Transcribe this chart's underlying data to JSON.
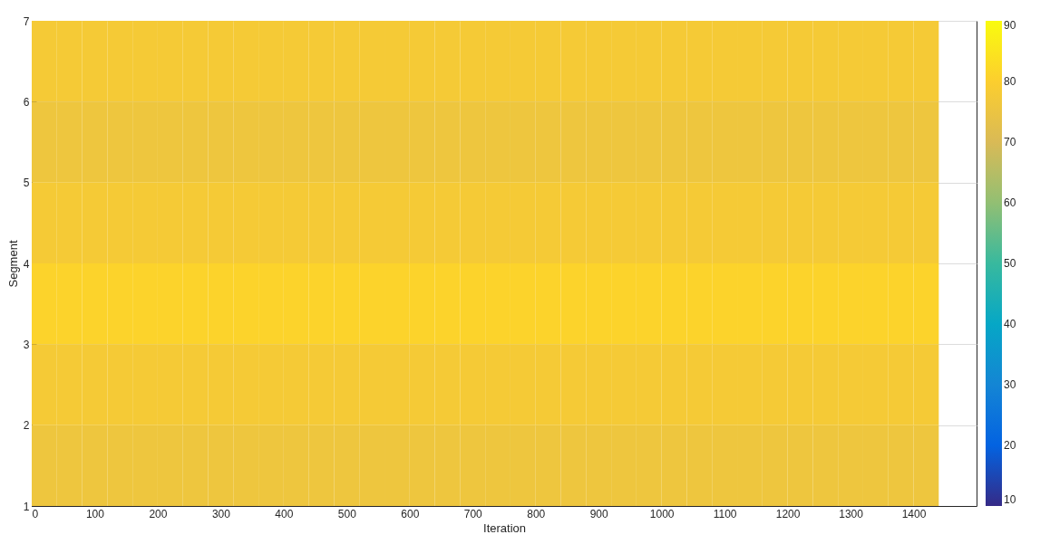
{
  "chart_data": {
    "type": "heatmap",
    "xlabel": "Iteration",
    "ylabel": "Segment",
    "x": [
      20,
      60,
      100,
      140,
      180,
      220,
      260,
      300,
      340,
      380,
      420,
      460,
      500,
      540,
      580,
      620,
      660,
      700,
      740,
      780,
      820,
      860,
      900,
      940,
      980,
      1020,
      1060,
      1100,
      1140,
      1180,
      1220,
      1260,
      1300,
      1340,
      1380,
      1420
    ],
    "cells": [
      [
        78,
        78,
        78,
        78,
        78,
        78,
        78,
        78,
        78,
        78,
        78,
        78,
        78,
        78,
        78,
        78,
        78,
        78,
        78,
        78,
        78,
        78,
        78,
        78,
        78,
        78,
        78,
        78,
        78,
        78,
        78,
        78,
        78,
        78,
        78,
        78
      ],
      [
        76,
        76,
        76,
        76,
        76,
        76,
        76,
        76,
        76,
        76,
        76,
        76,
        76,
        76,
        76,
        76,
        76,
        76,
        76,
        76,
        76,
        76,
        76,
        76,
        76,
        76,
        76,
        76,
        76,
        76,
        76,
        76,
        76,
        76,
        76,
        76
      ],
      [
        78,
        78,
        78,
        78,
        78,
        78,
        78,
        78,
        78,
        78,
        78,
        78,
        78,
        78,
        78,
        78,
        78,
        78,
        78,
        78,
        78,
        78,
        78,
        78,
        78,
        78,
        78,
        78,
        78,
        78,
        78,
        78,
        78,
        78,
        78,
        78
      ],
      [
        81,
        81,
        81,
        81,
        81,
        81,
        81,
        81,
        81,
        81,
        81,
        81,
        81,
        81,
        81,
        81,
        81,
        81,
        81,
        81,
        81,
        81,
        81,
        81,
        81,
        81,
        81,
        81,
        81,
        81,
        81,
        81,
        81,
        81,
        81,
        81
      ],
      [
        78,
        78,
        78,
        78,
        78,
        78,
        78,
        78,
        78,
        78,
        78,
        78,
        78,
        78,
        78,
        78,
        78,
        78,
        78,
        78,
        78,
        78,
        78,
        78,
        78,
        78,
        78,
        78,
        78,
        78,
        78,
        78,
        78,
        78,
        78,
        78
      ],
      [
        76,
        76,
        76,
        76,
        76,
        76,
        76,
        76,
        76,
        76,
        76,
        76,
        76,
        76,
        76,
        76,
        76,
        76,
        76,
        76,
        76,
        76,
        76,
        76,
        76,
        76,
        76,
        76,
        76,
        76,
        76,
        76,
        76,
        76,
        76,
        76
      ]
    ],
    "xlim": [
      0,
      1500
    ],
    "xticks": [
      0,
      100,
      200,
      300,
      400,
      500,
      600,
      700,
      800,
      900,
      1000,
      1100,
      1200,
      1300,
      1400
    ],
    "ylim": [
      1,
      7
    ],
    "yticks": [
      1,
      2,
      3,
      4,
      5,
      6,
      7
    ],
    "clim": [
      10,
      90
    ],
    "cticks": [
      10,
      20,
      30,
      40,
      50,
      60,
      70,
      80,
      90
    ],
    "grid": "y"
  }
}
